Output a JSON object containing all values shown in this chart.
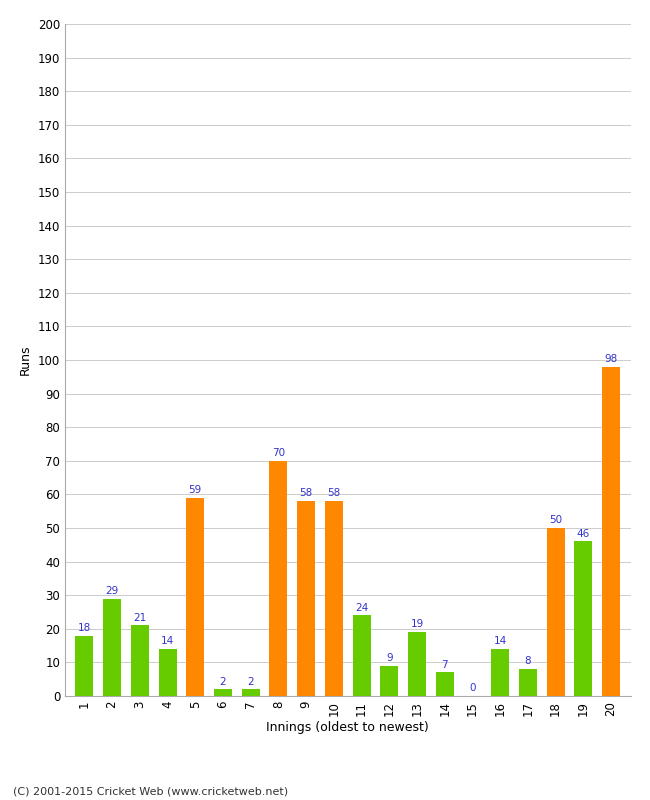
{
  "innings": [
    1,
    2,
    3,
    4,
    5,
    6,
    7,
    8,
    9,
    10,
    11,
    12,
    13,
    14,
    15,
    16,
    17,
    18,
    19,
    20
  ],
  "values": [
    18,
    29,
    21,
    14,
    59,
    2,
    2,
    70,
    58,
    58,
    24,
    9,
    19,
    7,
    0,
    14,
    8,
    50,
    46,
    98
  ],
  "colors": [
    "#66cc00",
    "#66cc00",
    "#66cc00",
    "#66cc00",
    "#ff8800",
    "#66cc00",
    "#66cc00",
    "#ff8800",
    "#ff8800",
    "#ff8800",
    "#66cc00",
    "#66cc00",
    "#66cc00",
    "#66cc00",
    "#66cc00",
    "#66cc00",
    "#66cc00",
    "#ff8800",
    "#66cc00",
    "#ff8800"
  ],
  "xlabel": "Innings (oldest to newest)",
  "ylabel": "Runs",
  "ylim": [
    0,
    200
  ],
  "yticks": [
    0,
    10,
    20,
    30,
    40,
    50,
    60,
    70,
    80,
    90,
    100,
    110,
    120,
    130,
    140,
    150,
    160,
    170,
    180,
    190,
    200
  ],
  "label_color": "#3333cc",
  "background_color": "#ffffff",
  "grid_color": "#cccccc",
  "footer": "(C) 2001-2015 Cricket Web (www.cricketweb.net)"
}
